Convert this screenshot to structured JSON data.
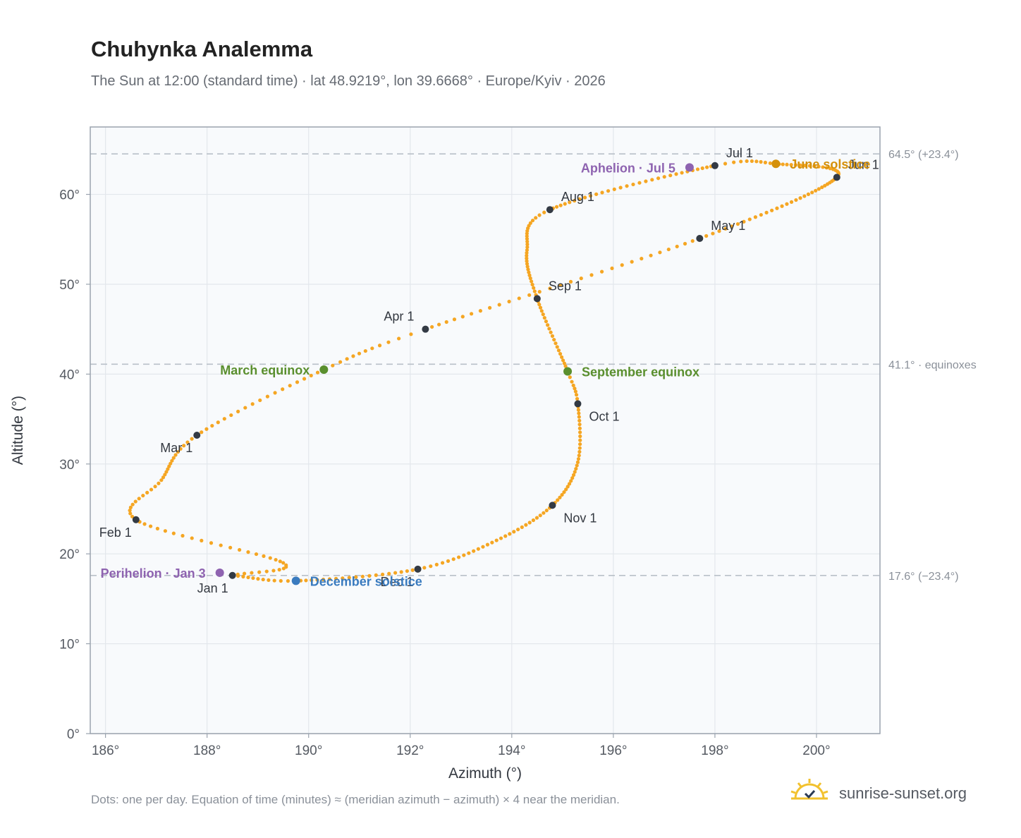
{
  "title": "Chuhynka Analemma",
  "subtitle": "The Sun at 12:00 (standard time) · lat 48.9219°, lon 39.6668° · Europe/Kyiv · 2026",
  "footnote": "Dots: one per day. Equation of time (minutes) ≈ (meridian azimuth − azimuth) × 4 near the meridian.",
  "brand": {
    "text": "sunrise-sunset.org",
    "icon": "sun-logo-icon"
  },
  "colors": {
    "curve": "#f5a623",
    "month_marker": "#333a44",
    "equinox": "#5a8f2e",
    "june_solstice": "#d4900a",
    "december_solstice": "#3a7bbf",
    "apsis": "#8e63b0",
    "plot_bg": "#f8fafc",
    "grid": "#e3e7ec",
    "frame": "#9aa3ae",
    "reference_line": "#b9c0c8"
  },
  "chart_data": {
    "type": "scatter",
    "title": "Chuhynka Analemma",
    "xlabel": "Azimuth (°)",
    "ylabel": "Altitude (°)",
    "xlim": [
      185.7,
      201.25
    ],
    "ylim": [
      0,
      67.5
    ],
    "x_ticks": [
      {
        "value": 186,
        "label": "186°"
      },
      {
        "value": 188,
        "label": "188°"
      },
      {
        "value": 190,
        "label": "190°"
      },
      {
        "value": 192,
        "label": "192°"
      },
      {
        "value": 194,
        "label": "194°"
      },
      {
        "value": 196,
        "label": "196°"
      },
      {
        "value": 198,
        "label": "198°"
      },
      {
        "value": 200,
        "label": "200°"
      }
    ],
    "y_ticks": [
      {
        "value": 0,
        "label": "0°"
      },
      {
        "value": 10,
        "label": "10°"
      },
      {
        "value": 20,
        "label": "20°"
      },
      {
        "value": 30,
        "label": "30°"
      },
      {
        "value": 40,
        "label": "40°"
      },
      {
        "value": 50,
        "label": "50°"
      },
      {
        "value": 60,
        "label": "60°"
      }
    ],
    "grid": true,
    "reference_lines": [
      {
        "y": 64.5,
        "label": "64.5° (+23.4°)"
      },
      {
        "y": 41.1,
        "label": "41.1° · equinoxes"
      },
      {
        "y": 17.6,
        "label": "17.6° (−23.4°)"
      }
    ],
    "curve_knots": [
      {
        "day": 1,
        "az": 188.5,
        "alt": 17.6
      },
      {
        "day": 12,
        "az": 189.5,
        "alt": 19.0
      },
      {
        "day": 32,
        "az": 186.6,
        "alt": 23.8
      },
      {
        "day": 45,
        "az": 187.1,
        "alt": 28.2
      },
      {
        "day": 60,
        "az": 187.8,
        "alt": 33.2
      },
      {
        "day": 79,
        "az": 190.3,
        "alt": 40.5
      },
      {
        "day": 91,
        "az": 192.3,
        "alt": 45.0
      },
      {
        "day": 121,
        "az": 197.7,
        "alt": 55.1
      },
      {
        "day": 152,
        "az": 200.4,
        "alt": 61.9
      },
      {
        "day": 172,
        "az": 199.2,
        "alt": 63.4
      },
      {
        "day": 182,
        "az": 198.0,
        "alt": 63.2
      },
      {
        "day": 213,
        "az": 194.75,
        "alt": 58.3
      },
      {
        "day": 228,
        "az": 194.3,
        "alt": 53.8
      },
      {
        "day": 244,
        "az": 194.5,
        "alt": 48.4
      },
      {
        "day": 266,
        "az": 195.1,
        "alt": 40.3
      },
      {
        "day": 274,
        "az": 195.3,
        "alt": 36.7
      },
      {
        "day": 290,
        "az": 195.3,
        "alt": 30.2
      },
      {
        "day": 305,
        "az": 194.8,
        "alt": 25.4
      },
      {
        "day": 320,
        "az": 193.7,
        "alt": 21.5
      },
      {
        "day": 335,
        "az": 192.15,
        "alt": 18.3
      },
      {
        "day": 355,
        "az": 189.75,
        "alt": 17.0
      },
      {
        "day": 366,
        "az": 188.5,
        "alt": 17.6
      }
    ],
    "month_markers": [
      {
        "label": "Jan 1",
        "az": 188.5,
        "alt": 17.6,
        "label_pos": "below-left"
      },
      {
        "label": "Feb 1",
        "az": 186.6,
        "alt": 23.8,
        "label_pos": "below-left"
      },
      {
        "label": "Mar 1",
        "az": 187.8,
        "alt": 33.2,
        "label_pos": "below-left"
      },
      {
        "label": "Apr 1",
        "az": 192.3,
        "alt": 45.0,
        "label_pos": "above-left"
      },
      {
        "label": "May 1",
        "az": 197.7,
        "alt": 55.1,
        "label_pos": "above-right"
      },
      {
        "label": "Jun 1",
        "az": 200.4,
        "alt": 61.9,
        "label_pos": "above-right"
      },
      {
        "label": "Jul 1",
        "az": 198.0,
        "alt": 63.2,
        "label_pos": "above-right"
      },
      {
        "label": "Aug 1",
        "az": 194.75,
        "alt": 58.3,
        "label_pos": "above-right"
      },
      {
        "label": "Sep 1",
        "az": 194.5,
        "alt": 48.4,
        "label_pos": "above-right"
      },
      {
        "label": "Oct 1",
        "az": 195.3,
        "alt": 36.7,
        "label_pos": "below-right"
      },
      {
        "label": "Nov 1",
        "az": 194.8,
        "alt": 25.4,
        "label_pos": "below-right"
      },
      {
        "label": "Dec 1",
        "az": 192.15,
        "alt": 18.3,
        "label_pos": "below-left"
      }
    ],
    "events": [
      {
        "label": "March equinox",
        "az": 190.3,
        "alt": 40.5,
        "color_key": "equinox",
        "label_pos": "left"
      },
      {
        "label": "September equinox",
        "az": 195.1,
        "alt": 40.3,
        "color_key": "equinox",
        "label_pos": "right"
      },
      {
        "label": "June solstice",
        "az": 199.2,
        "alt": 63.4,
        "color_key": "june_solstice",
        "label_pos": "right"
      },
      {
        "label": "December solstice",
        "az": 189.75,
        "alt": 17.0,
        "color_key": "december_solstice",
        "label_pos": "right"
      },
      {
        "label": "Perihelion · Jan 3",
        "az": 188.25,
        "alt": 17.9,
        "color_key": "apsis",
        "label_pos": "left"
      },
      {
        "label": "Aphelion · Jul 5",
        "az": 197.5,
        "alt": 63.0,
        "color_key": "apsis",
        "label_pos": "left"
      }
    ]
  }
}
